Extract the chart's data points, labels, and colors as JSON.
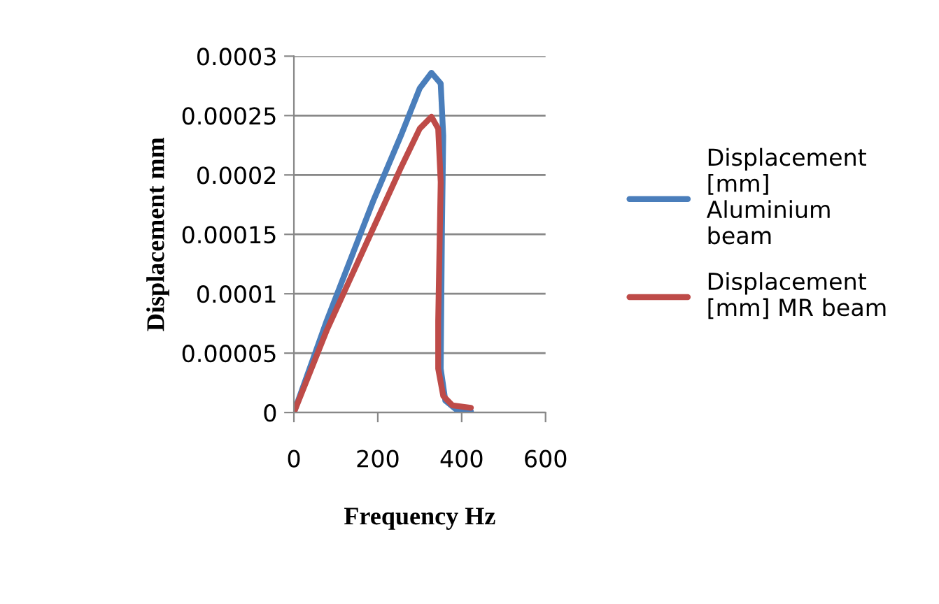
{
  "chart_data": {
    "type": "line",
    "xlabel": "Frequency Hz",
    "ylabel": "Displacement mm",
    "xlim": [
      0,
      600
    ],
    "xticks": [
      0,
      200,
      400,
      600
    ],
    "ylim": [
      0,
      0.0003
    ],
    "yticks": [
      0,
      {
        "value": 5e-05,
        "label": "0.00005"
      },
      0.0001,
      0.00015,
      0.0002,
      0.00025,
      0.0003
    ],
    "grid": "y",
    "legend": "right",
    "marker": "none",
    "line_style": "solid",
    "series": [
      {
        "name": "Displacement [mm] Aluminium beam",
        "color": "#4a7ebb",
        "x": [
          0,
          78,
          189,
          255,
          300,
          328,
          350,
          356,
          353,
          350,
          361,
          389,
          422
        ],
        "values": [
          0,
          7.7e-05,
          0.000178,
          0.000233,
          0.000273,
          0.000286,
          0.000277,
          0.000233,
          0.000155,
          3.7e-05,
          1e-05,
          2e-06,
          1e-06
        ]
      },
      {
        "name": "Displacement [mm] MR beam",
        "color": "#be4b48",
        "x": [
          0,
          78,
          189,
          255,
          300,
          328,
          344,
          350,
          344,
          344,
          356,
          378,
          422
        ],
        "values": [
          0,
          6.9e-05,
          0.000155,
          0.000206,
          0.000239,
          0.000249,
          0.000239,
          0.000194,
          7.7e-05,
          3.7e-05,
          1.4e-05,
          6e-06,
          4e-06
        ]
      }
    ]
  }
}
